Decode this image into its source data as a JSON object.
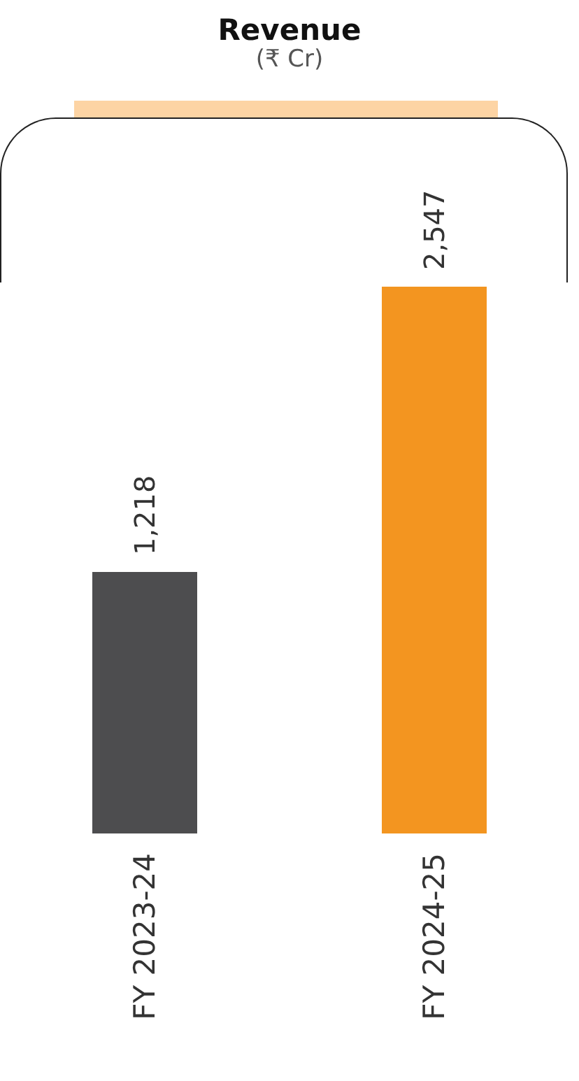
{
  "chart_data": {
    "type": "bar",
    "title": "Revenue",
    "subtitle": "(₹ Cr)",
    "categories": [
      "FY 2023-24",
      "FY 2024-25"
    ],
    "values": [
      1218,
      2547
    ],
    "value_labels": [
      "1,218",
      "2,547"
    ],
    "colors": [
      "#4d4d4f",
      "#f39520"
    ]
  }
}
